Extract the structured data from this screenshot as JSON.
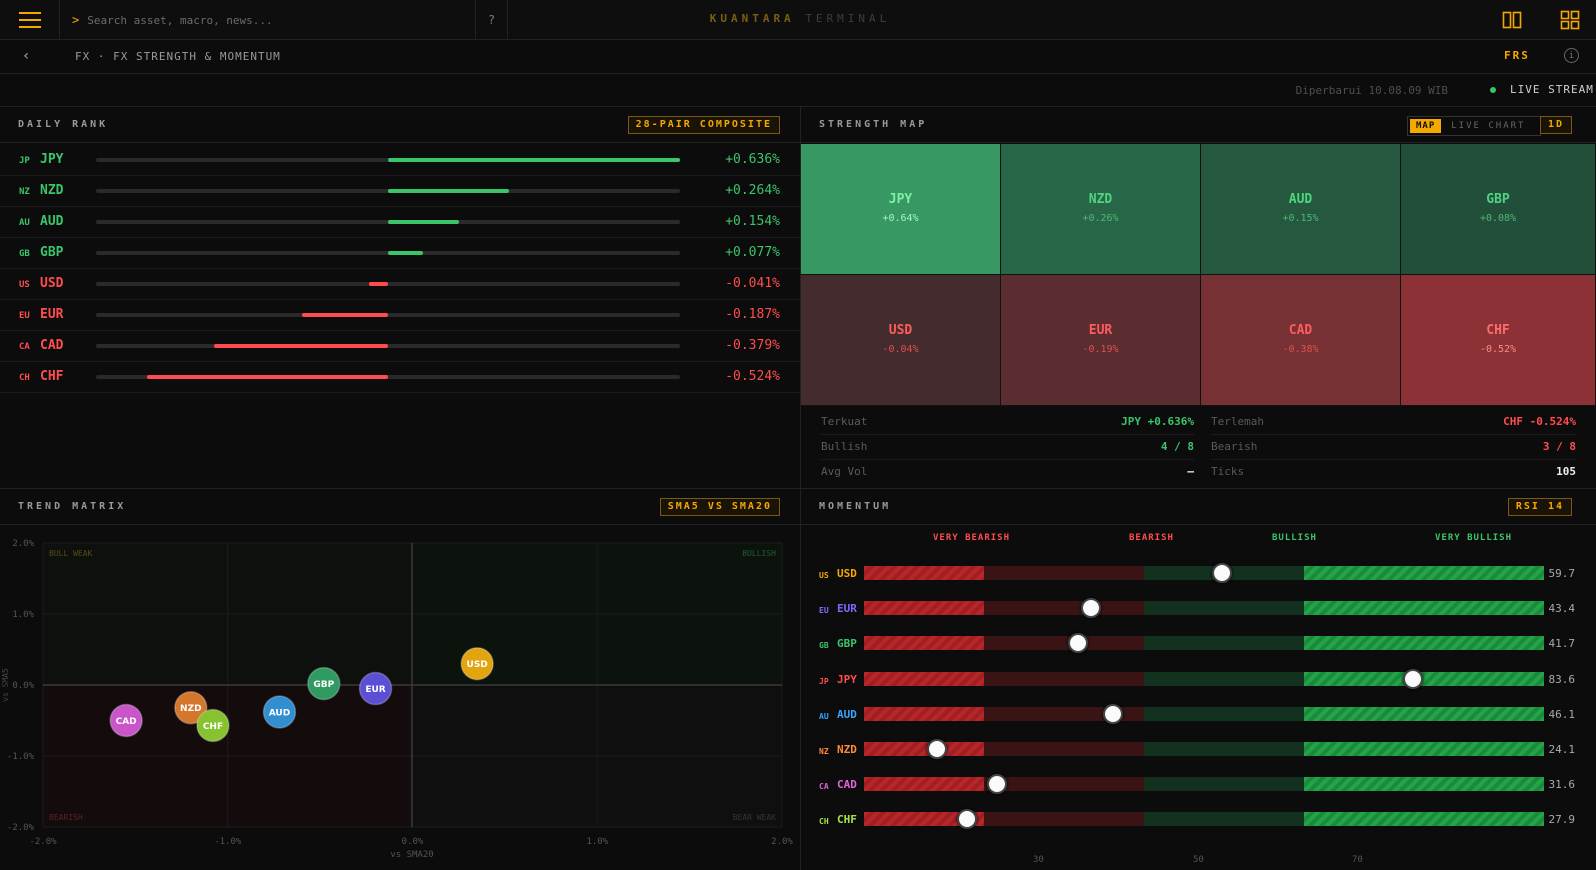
{
  "header": {
    "search_placeholder": "Search asset, macro, news...",
    "search_prompt": ">",
    "help_label": "?",
    "brand_primary": "KUANTARA",
    "brand_secondary": "TERMINAL"
  },
  "subbar": {
    "back_label": "‹",
    "breadcrumb": "FX · FX STRENGTH & MOMENTUM",
    "code": "FRS",
    "info_label": "i"
  },
  "status": {
    "updated": "Diperbarui 10.08.09 WIB",
    "live_label": "LIVE STREAM"
  },
  "colors": {
    "accent": "#f5a800",
    "positive": "#3cc46a",
    "negative": "#ff4d4f"
  },
  "daily_rank": {
    "title": "DAILY RANK",
    "tag": "28-PAIR COMPOSITE",
    "max_abs": 0.636,
    "rows": [
      {
        "code": "JP",
        "name": "JPY",
        "value": 0.636,
        "label": "+0.636%"
      },
      {
        "code": "NZ",
        "name": "NZD",
        "value": 0.264,
        "label": "+0.264%"
      },
      {
        "code": "AU",
        "name": "AUD",
        "value": 0.154,
        "label": "+0.154%"
      },
      {
        "code": "GB",
        "name": "GBP",
        "value": 0.077,
        "label": "+0.077%"
      },
      {
        "code": "US",
        "name": "USD",
        "value": -0.041,
        "label": "-0.041%"
      },
      {
        "code": "EU",
        "name": "EUR",
        "value": -0.187,
        "label": "-0.187%"
      },
      {
        "code": "CA",
        "name": "CAD",
        "value": -0.379,
        "label": "-0.379%"
      },
      {
        "code": "CH",
        "name": "CHF",
        "value": -0.524,
        "label": "-0.524%"
      }
    ]
  },
  "strength_map": {
    "title": "STRENGTH MAP",
    "seg_map": "MAP",
    "seg_live": "LIVE CHART",
    "timeframe": "1D",
    "tiles": [
      {
        "name": "JPY",
        "label": "+0.64%",
        "value": 0.64
      },
      {
        "name": "NZD",
        "label": "+0.26%",
        "value": 0.26
      },
      {
        "name": "AUD",
        "label": "+0.15%",
        "value": 0.15
      },
      {
        "name": "GBP",
        "label": "+0.08%",
        "value": 0.08
      },
      {
        "name": "USD",
        "label": "-0.04%",
        "value": -0.04
      },
      {
        "name": "EUR",
        "label": "-0.19%",
        "value": -0.19
      },
      {
        "name": "CAD",
        "label": "-0.38%",
        "value": -0.38
      },
      {
        "name": "CHF",
        "label": "-0.52%",
        "value": -0.52
      }
    ],
    "stats": {
      "strongest_label": "Terkuat",
      "strongest_value": "JPY +0.636%",
      "weakest_label": "Terlemah",
      "weakest_value": "CHF -0.524%",
      "bullish_label": "Bullish",
      "bullish_value": "4 / 8",
      "bearish_label": "Bearish",
      "bearish_value": "3 / 8",
      "avgvol_label": "Avg Vol",
      "avgvol_value": "—",
      "ticks_label": "Ticks",
      "ticks_value": "105"
    }
  },
  "trend_matrix": {
    "title": "TREND MATRIX",
    "tag": "SMA5 VS SMA20",
    "quadrants": {
      "top_left": "BULL WEAK",
      "top_right": "BULLISH",
      "bottom_left": "BEARISH",
      "bottom_right": "BEAR WEAK"
    }
  },
  "chart_data": {
    "type": "scatter",
    "xlabel": "vs SMA20",
    "ylabel": "vs SMA5",
    "xlim": [
      -2.0,
      2.0
    ],
    "ylim": [
      -2.0,
      2.0
    ],
    "xticks": [
      "-2.0%",
      "-1.0%",
      "0.0%",
      "1.0%",
      "2.0%"
    ],
    "yticks": [
      "2.0%",
      "1.0%",
      "0.0%",
      "-1.0%",
      "-2.0%"
    ],
    "points": [
      {
        "name": "USD",
        "x": 0.35,
        "y": 0.3,
        "color": "#e2a50f"
      },
      {
        "name": "EUR",
        "x": -0.2,
        "y": -0.05,
        "color": "#5b4fd6"
      },
      {
        "name": "GBP",
        "x": -0.48,
        "y": 0.02,
        "color": "#2f9a62"
      },
      {
        "name": "AUD",
        "x": -0.72,
        "y": -0.38,
        "color": "#2f8fd0"
      },
      {
        "name": "NZD",
        "x": -1.2,
        "y": -0.32,
        "color": "#d4762b"
      },
      {
        "name": "CHF",
        "x": -1.08,
        "y": -0.57,
        "color": "#86c32f"
      },
      {
        "name": "CAD",
        "x": -1.55,
        "y": -0.5,
        "color": "#c955c9"
      }
    ]
  },
  "momentum": {
    "title": "MOMENTUM",
    "tag": "RSI 14",
    "cats": [
      "VERY BEARISH",
      "BEARISH",
      "BULLISH",
      "VERY BULLISH"
    ],
    "axis_ticks": [
      "30",
      "50",
      "70"
    ],
    "rows": [
      {
        "code": "US",
        "name": "USD",
        "rsi": 59.7,
        "label": "59.7",
        "color": "#f5a800"
      },
      {
        "code": "EU",
        "name": "EUR",
        "rsi": 43.4,
        "label": "43.4",
        "color": "#7b6cff"
      },
      {
        "code": "GB",
        "name": "GBP",
        "rsi": 41.7,
        "label": "41.7",
        "color": "#3cc46a"
      },
      {
        "code": "JP",
        "name": "JPY",
        "rsi": 83.6,
        "label": "83.6",
        "color": "#ff4d4f"
      },
      {
        "code": "AU",
        "name": "AUD",
        "rsi": 46.1,
        "label": "46.1",
        "color": "#36a3ff"
      },
      {
        "code": "NZ",
        "name": "NZD",
        "rsi": 24.1,
        "label": "24.1",
        "color": "#ff8a3d"
      },
      {
        "code": "CA",
        "name": "CAD",
        "rsi": 31.6,
        "label": "31.6",
        "color": "#e064e0"
      },
      {
        "code": "CH",
        "name": "CHF",
        "rsi": 27.9,
        "label": "27.9",
        "color": "#a6e34a"
      }
    ]
  }
}
